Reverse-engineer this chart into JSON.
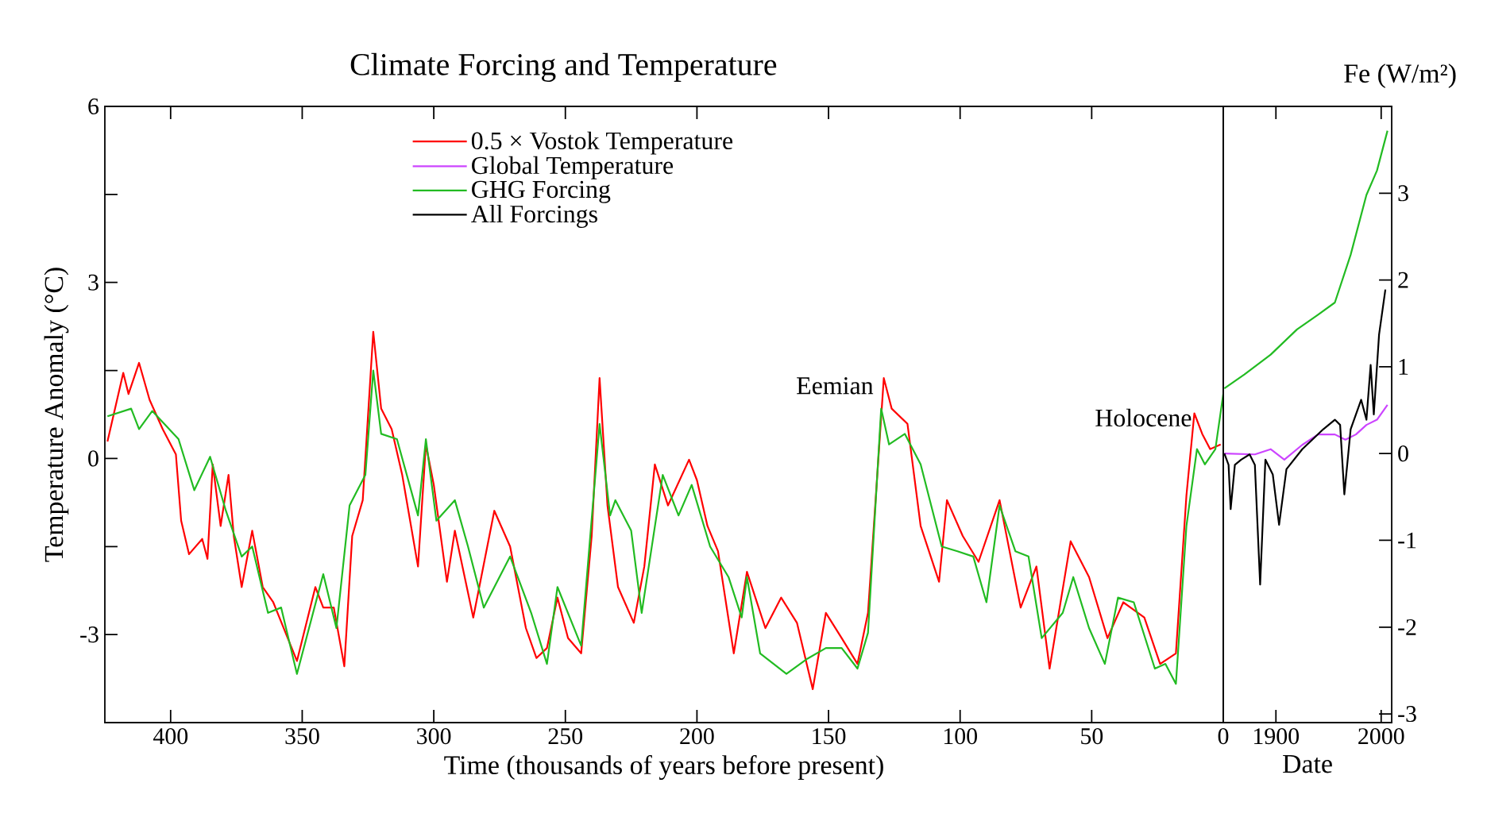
{
  "chart_data": [
    {
      "type": "line",
      "title": "Climate Forcing and Temperature",
      "xlabel": "Time (thousands of years before present)",
      "ylabel": "Temperature Anomaly (°C)",
      "xlim": [
        425,
        0
      ],
      "xticks": [
        400,
        350,
        300,
        250,
        200,
        150,
        100,
        50,
        0
      ],
      "ylim": [
        -4.5,
        6
      ],
      "yticks": [
        6,
        {
          "value": 4.5,
          "label": null
        },
        3,
        {
          "value": 1.5,
          "label": null
        },
        0,
        {
          "value": -1.5,
          "label": null
        },
        -3
      ],
      "legend": "top",
      "annotations": [
        {
          "text": "Eemian",
          "x": 129,
          "y": 1.0
        },
        {
          "text": "Holocene",
          "x": 8,
          "y": 0.45
        }
      ],
      "series": [
        {
          "name": "0.5 × Vostok Temperature",
          "color": "#ff0000",
          "x": [
            424,
            418,
            416,
            412,
            408,
            403,
            398,
            396,
            393,
            388,
            386,
            384,
            381,
            378,
            376,
            373,
            369,
            365,
            361,
            352,
            345,
            342,
            338,
            334,
            331,
            327,
            323,
            320,
            316,
            312,
            306,
            303,
            300,
            295,
            292,
            285,
            277,
            271,
            265,
            261,
            257,
            253,
            249,
            244,
            240,
            237,
            234,
            230,
            224,
            220,
            216,
            211,
            203,
            200,
            196,
            192,
            186,
            181,
            174,
            168,
            162,
            156,
            151,
            145,
            139,
            135,
            129,
            126,
            120,
            115,
            108,
            105,
            99,
            93,
            85,
            77,
            71,
            66,
            58,
            51,
            44,
            38,
            30,
            24,
            18,
            14,
            11,
            8,
            5,
            1
          ],
          "values": [
            0.29,
            1.46,
            1.1,
            1.63,
            1.0,
            0.5,
            0.07,
            -1.06,
            -1.63,
            -1.37,
            -1.71,
            -0.1,
            -1.15,
            -0.28,
            -1.32,
            -2.19,
            -1.23,
            -2.19,
            -2.45,
            -3.45,
            -2.19,
            -2.54,
            -2.54,
            -3.54,
            -1.32,
            -0.71,
            2.16,
            0.85,
            0.5,
            -0.28,
            -1.84,
            0.24,
            -0.45,
            -2.1,
            -1.23,
            -2.71,
            -0.89,
            -1.5,
            -2.89,
            -3.4,
            -3.23,
            -2.37,
            -3.06,
            -3.32,
            -1.32,
            1.37,
            -0.8,
            -2.19,
            -2.8,
            -1.84,
            -0.1,
            -0.8,
            -0.02,
            -0.37,
            -1.15,
            -1.58,
            -3.32,
            -1.93,
            -2.89,
            -2.37,
            -2.8,
            -3.93,
            -2.63,
            -3.06,
            -3.5,
            -2.63,
            1.37,
            0.85,
            0.59,
            -1.15,
            -2.1,
            -0.71,
            -1.32,
            -1.76,
            -0.71,
            -2.54,
            -1.84,
            -3.58,
            -1.41,
            -2.02,
            -3.06,
            -2.45,
            -2.71,
            -3.5,
            -3.32,
            -0.63,
            0.77,
            0.42,
            0.16,
            0.24
          ]
        },
        {
          "name": "GHG Forcing",
          "color": "#22bb22",
          "x": [
            424,
            415,
            412,
            407,
            397,
            391,
            385,
            379,
            373,
            369,
            363,
            358,
            352,
            342,
            337,
            332,
            326,
            323,
            320,
            314,
            306,
            303,
            299,
            292,
            287,
            281,
            271,
            263,
            257,
            253,
            244,
            237,
            233,
            231,
            225,
            221,
            213,
            207,
            202,
            195,
            188,
            183,
            181,
            176,
            166,
            158,
            151,
            145,
            139,
            135,
            130,
            127,
            121,
            115,
            107,
            101,
            95,
            90,
            85,
            79,
            74,
            69,
            61,
            57,
            51,
            45,
            40,
            34,
            26,
            22,
            18,
            14,
            10,
            7,
            3,
            0
          ],
          "values": [
            0.72,
            0.85,
            0.5,
            0.81,
            0.33,
            -0.54,
            0.03,
            -0.89,
            -1.67,
            -1.5,
            -2.63,
            -2.54,
            -3.67,
            -1.97,
            -2.89,
            -0.8,
            -0.28,
            1.5,
            0.42,
            0.33,
            -0.97,
            0.33,
            -1.06,
            -0.71,
            -1.5,
            -2.54,
            -1.67,
            -2.63,
            -3.5,
            -2.19,
            -3.19,
            0.59,
            -0.97,
            -0.71,
            -1.23,
            -2.63,
            -0.28,
            -0.97,
            -0.45,
            -1.5,
            -2.02,
            -2.71,
            -2.02,
            -3.32,
            -3.67,
            -3.41,
            -3.23,
            -3.23,
            -3.58,
            -2.97,
            0.85,
            0.24,
            0.42,
            -0.1,
            -1.5,
            -1.58,
            -1.67,
            -2.45,
            -0.8,
            -1.58,
            -1.67,
            -3.06,
            -2.63,
            -2.02,
            -2.89,
            -3.5,
            -2.37,
            -2.45,
            -3.58,
            -3.5,
            -3.84,
            -1.15,
            0.16,
            -0.1,
            0.16,
            1.1
          ]
        }
      ]
    },
    {
      "type": "line",
      "xlabel": "Date",
      "ylabel": "Fe (W/m²)",
      "xlim": [
        1850,
        2010
      ],
      "xticks": [
        1900,
        2000
      ],
      "ylim": [
        -3.1,
        4
      ],
      "yticks": [
        -3,
        -2,
        -1,
        0,
        1,
        2,
        3
      ],
      "series": [
        {
          "color": "#22bb22",
          "x": [
            1851,
            1870,
            1895,
            1920,
            1940,
            1956,
            1971,
            1986,
            1996,
            2006
          ],
          "values": [
            0.75,
            0.91,
            1.14,
            1.43,
            1.6,
            1.74,
            2.29,
            2.98,
            3.26,
            3.72
          ]
        },
        {
          "name": "Global Temperature",
          "color": "#cc44ff",
          "x": [
            1851,
            1880,
            1895,
            1908,
            1925,
            1940,
            1956,
            1966,
            1976,
            1986,
            1996,
            2006
          ],
          "values": [
            0,
            -0.01,
            0.05,
            -0.07,
            0.1,
            0.22,
            0.22,
            0.16,
            0.22,
            0.33,
            0.39,
            0.56
          ]
        },
        {
          "name": "All Forcings",
          "color": "#000000",
          "x": [
            1851,
            1855,
            1857,
            1861,
            1867,
            1875,
            1880,
            1885,
            1890,
            1897,
            1903,
            1910,
            1925,
            1945,
            1956,
            1961,
            1965,
            1971,
            1981,
            1986,
            1990,
            1993,
            1998,
            2004
          ],
          "values": [
            0,
            -0.13,
            -0.64,
            -0.13,
            -0.07,
            -0.01,
            -0.13,
            -1.51,
            -0.07,
            -0.24,
            -0.82,
            -0.18,
            0.05,
            0.28,
            0.39,
            0.33,
            -0.47,
            0.28,
            0.62,
            0.39,
            1.02,
            0.45,
            1.37,
            1.89
          ]
        }
      ]
    }
  ]
}
